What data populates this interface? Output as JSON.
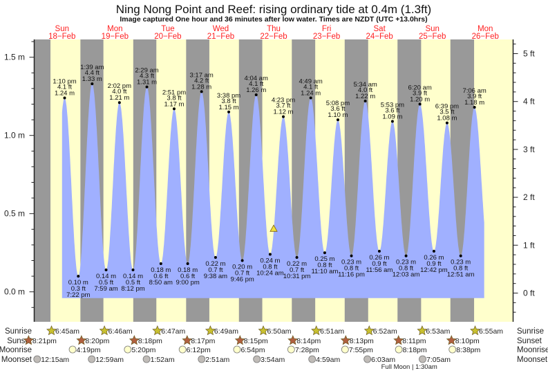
{
  "header": {
    "title": "Ning Nong Point and Reef: rising  ordinary tide at 0.4m (1.3ft)",
    "subtitle": "Image captured One hour and 36 minutes after low water. Times are NZDT (UTC +13.0hrs)"
  },
  "colors": {
    "night": "#999999",
    "day": "#ffffcc",
    "water": "#a0b0ff",
    "day_label": "#ff2020",
    "sunrise_star": "#c8c030",
    "sunset_star": "#b06040",
    "moonrise": "#ffffcc",
    "moonset": "#c0bcb8",
    "current_marker": "#f0e040"
  },
  "chart_data": {
    "type": "area",
    "title": "Ning Nong Point and Reef: rising  ordinary tide at 0.4m (1.3ft)",
    "ylim_m": [
      -0.15,
      1.6
    ],
    "left_axis_ticks": [
      "1.5 m",
      "1.0 m",
      "0.5 m",
      "0.0 m"
    ],
    "right_axis_ticks": [
      "5 ft",
      "4 ft",
      "3 ft",
      "2 ft",
      "1 ft",
      "0 ft"
    ],
    "grid": false,
    "days": [
      {
        "name": "Sun",
        "date": "18−Feb"
      },
      {
        "name": "Mon",
        "date": "19−Feb"
      },
      {
        "name": "Tue",
        "date": "20−Feb"
      },
      {
        "name": "Wed",
        "date": "21−Feb"
      },
      {
        "name": "Thu",
        "date": "22−Feb"
      },
      {
        "name": "Fri",
        "date": "23−Feb"
      },
      {
        "name": "Sat",
        "date": "24−Feb"
      },
      {
        "name": "Sun",
        "date": "25−Feb"
      },
      {
        "name": "Mon",
        "date": "26−Feb"
      }
    ],
    "current": {
      "day": 4,
      "time": "12:00 pm",
      "m": 0.4,
      "ft": 1.3,
      "state": "rising"
    },
    "tides": [
      {
        "day": 0,
        "type": "high",
        "time": "1:10 pm",
        "m": "1.24 m",
        "ft": "4.1 ft"
      },
      {
        "day": 0,
        "type": "low",
        "time": "7:22 pm",
        "m": "0.10 m",
        "ft": "0.3 ft"
      },
      {
        "day": 1,
        "type": "high",
        "time": "1:39 am",
        "m": "1.33 m",
        "ft": "4.4 ft"
      },
      {
        "day": 1,
        "type": "low",
        "time": "7:59 am",
        "m": "0.14 m",
        "ft": "0.5 ft"
      },
      {
        "day": 1,
        "type": "high",
        "time": "2:02 pm",
        "m": "1.21 m",
        "ft": "4.0 ft"
      },
      {
        "day": 1,
        "type": "low",
        "time": "8:12 pm",
        "m": "0.14 m",
        "ft": "0.5 ft"
      },
      {
        "day": 2,
        "type": "high",
        "time": "2:29 am",
        "m": "1.31 m",
        "ft": "4.3 ft"
      },
      {
        "day": 2,
        "type": "low",
        "time": "8:50 am",
        "m": "0.18 m",
        "ft": "0.6 ft"
      },
      {
        "day": 2,
        "type": "high",
        "time": "2:51 pm",
        "m": "1.17 m",
        "ft": "3.8 ft"
      },
      {
        "day": 2,
        "type": "low",
        "time": "9:00 pm",
        "m": "0.18 m",
        "ft": "0.6 ft"
      },
      {
        "day": 3,
        "type": "high",
        "time": "3:17 am",
        "m": "1.28 m",
        "ft": "4.2 ft"
      },
      {
        "day": 3,
        "type": "low",
        "time": "9:38 am",
        "m": "0.22 m",
        "ft": "0.7 ft"
      },
      {
        "day": 3,
        "type": "high",
        "time": "3:38 pm",
        "m": "1.15 m",
        "ft": "3.8 ft"
      },
      {
        "day": 3,
        "type": "low",
        "time": "9:46 pm",
        "m": "0.20 m",
        "ft": "0.7 ft"
      },
      {
        "day": 4,
        "type": "high",
        "time": "4:04 am",
        "m": "1.26 m",
        "ft": "4.1 ft"
      },
      {
        "day": 4,
        "type": "low",
        "time": "10:24 am",
        "m": "0.24 m",
        "ft": "0.8 ft"
      },
      {
        "day": 4,
        "type": "high",
        "time": "4:23 pm",
        "m": "1.12 m",
        "ft": "3.7 ft"
      },
      {
        "day": 4,
        "type": "low",
        "time": "10:31 pm",
        "m": "0.22 m",
        "ft": "0.7 ft"
      },
      {
        "day": 5,
        "type": "high",
        "time": "4:49 am",
        "m": "1.24 m",
        "ft": "4.1 ft"
      },
      {
        "day": 5,
        "type": "low",
        "time": "11:10 am",
        "m": "0.25 m",
        "ft": "0.8 ft"
      },
      {
        "day": 5,
        "type": "high",
        "time": "5:08 pm",
        "m": "1.10 m",
        "ft": "3.6 ft"
      },
      {
        "day": 5,
        "type": "low",
        "time": "11:16 pm",
        "m": "0.23 m",
        "ft": "0.8 ft"
      },
      {
        "day": 6,
        "type": "high",
        "time": "5:34 am",
        "m": "1.22 m",
        "ft": "4.0 ft"
      },
      {
        "day": 6,
        "type": "low",
        "time": "11:56 am",
        "m": "0.26 m",
        "ft": "0.9 ft"
      },
      {
        "day": 6,
        "type": "high",
        "time": "5:53 pm",
        "m": "1.09 m",
        "ft": "3.6 ft"
      },
      {
        "day": 7,
        "type": "low",
        "time": "12:03 am",
        "m": "0.23 m",
        "ft": "0.8 ft"
      },
      {
        "day": 7,
        "type": "high",
        "time": "6:20 am",
        "m": "1.20 m",
        "ft": "3.9 ft"
      },
      {
        "day": 7,
        "type": "low",
        "time": "12:42 pm",
        "m": "0.26 m",
        "ft": "0.9 ft"
      },
      {
        "day": 7,
        "type": "high",
        "time": "6:39 pm",
        "m": "1.08 m",
        "ft": "3.5 ft"
      },
      {
        "day": 8,
        "type": "low",
        "time": "12:51 am",
        "m": "0.23 m",
        "ft": "0.8 ft"
      },
      {
        "day": 8,
        "type": "high",
        "time": "7:06 am",
        "m": "1.18 m",
        "ft": "3.9 ft"
      }
    ]
  },
  "almanac": {
    "labels": {
      "sunrise": "Sunrise",
      "sunset": "Sunset",
      "moonrise": "Moonrise",
      "moonset": "Moonset"
    },
    "sunrise": [
      {
        "day": 0,
        "time": "6:45am"
      },
      {
        "day": 1,
        "time": "6:46am"
      },
      {
        "day": 2,
        "time": "6:47am"
      },
      {
        "day": 3,
        "time": "6:49am"
      },
      {
        "day": 4,
        "time": "6:50am"
      },
      {
        "day": 5,
        "time": "6:51am"
      },
      {
        "day": 6,
        "time": "6:52am"
      },
      {
        "day": 7,
        "time": "6:53am"
      },
      {
        "day": 8,
        "time": "6:55am"
      }
    ],
    "sunset": [
      {
        "day": -1,
        "time": "8:21pm"
      },
      {
        "day": 0,
        "time": "8:20pm"
      },
      {
        "day": 1,
        "time": "8:18pm"
      },
      {
        "day": 2,
        "time": "8:17pm"
      },
      {
        "day": 3,
        "time": "8:15pm"
      },
      {
        "day": 4,
        "time": "8:14pm"
      },
      {
        "day": 5,
        "time": "8:13pm"
      },
      {
        "day": 6,
        "time": "8:11pm"
      },
      {
        "day": 7,
        "time": "8:10pm"
      }
    ],
    "moonrise": [
      {
        "day": 0,
        "time": "4:19pm"
      },
      {
        "day": 1,
        "time": "5:20pm"
      },
      {
        "day": 2,
        "time": "6:12pm"
      },
      {
        "day": 3,
        "time": "6:54pm"
      },
      {
        "day": 4,
        "time": "7:28pm"
      },
      {
        "day": 5,
        "time": "7:55pm"
      },
      {
        "day": 6,
        "time": "8:18pm"
      },
      {
        "day": 7,
        "time": "8:38pm"
      }
    ],
    "moonset": [
      {
        "day": 0,
        "time": "12:15am"
      },
      {
        "day": 1,
        "time": "12:59am"
      },
      {
        "day": 2,
        "time": "1:52am"
      },
      {
        "day": 3,
        "time": "2:51am"
      },
      {
        "day": 4,
        "time": "3:54am"
      },
      {
        "day": 5,
        "time": "4:59am"
      },
      {
        "day": 6,
        "time": "6:03am"
      },
      {
        "day": 7,
        "time": "7:05am"
      }
    ],
    "moon_phase": {
      "day": 7,
      "label": "Full Moon | 1:30am"
    }
  }
}
